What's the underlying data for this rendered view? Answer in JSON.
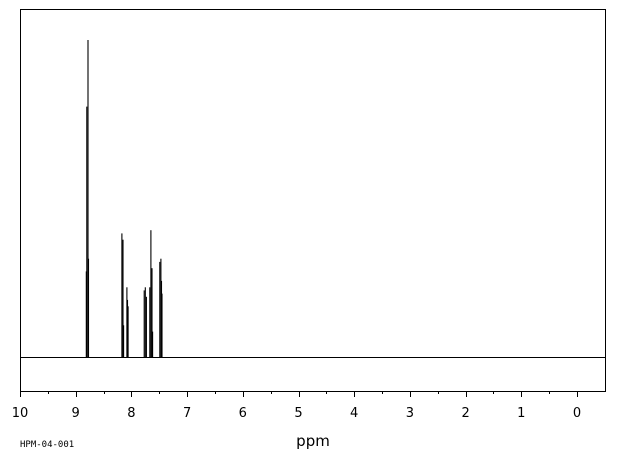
{
  "spectrum_code": "HPM-04-001",
  "chart_data": {
    "type": "line",
    "title": "",
    "xlabel": "ppm",
    "ylabel": "",
    "x_reversed": true,
    "xlim": [
      10,
      0
    ],
    "ylim": [
      0,
      1
    ],
    "x_ticks": [
      "10",
      "9",
      "8",
      "7",
      "6",
      "5",
      "4",
      "3",
      "2",
      "1",
      "0"
    ],
    "x_minor_step": 0.5,
    "grid": false,
    "legend": "none",
    "peaks": [
      {
        "ppm": 8.81,
        "intensity": 0.27
      },
      {
        "ppm": 8.8,
        "intensity": 0.79
      },
      {
        "ppm": 8.78,
        "intensity": 1.0
      },
      {
        "ppm": 8.77,
        "intensity": 0.31
      },
      {
        "ppm": 8.17,
        "intensity": 0.39
      },
      {
        "ppm": 8.15,
        "intensity": 0.37
      },
      {
        "ppm": 8.14,
        "intensity": 0.1
      },
      {
        "ppm": 8.08,
        "intensity": 0.22
      },
      {
        "ppm": 8.07,
        "intensity": 0.18
      },
      {
        "ppm": 8.06,
        "intensity": 0.16
      },
      {
        "ppm": 7.77,
        "intensity": 0.21
      },
      {
        "ppm": 7.75,
        "intensity": 0.22
      },
      {
        "ppm": 7.73,
        "intensity": 0.19
      },
      {
        "ppm": 7.67,
        "intensity": 0.22
      },
      {
        "ppm": 7.65,
        "intensity": 0.4
      },
      {
        "ppm": 7.63,
        "intensity": 0.28
      },
      {
        "ppm": 7.62,
        "intensity": 0.08
      },
      {
        "ppm": 7.49,
        "intensity": 0.3
      },
      {
        "ppm": 7.47,
        "intensity": 0.31
      },
      {
        "ppm": 7.46,
        "intensity": 0.24
      },
      {
        "ppm": 7.45,
        "intensity": 0.2
      }
    ]
  }
}
